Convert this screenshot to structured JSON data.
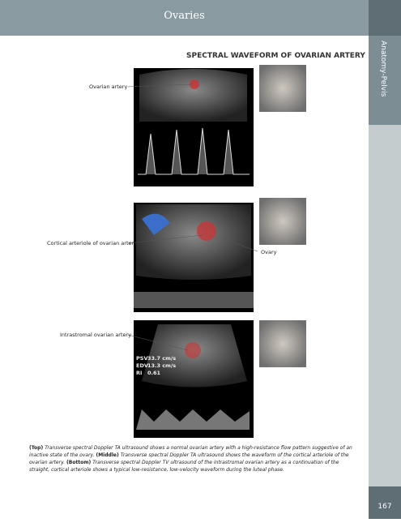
{
  "header": {
    "title": "Ovaries",
    "side_tab": "Anatomy-Pelvis",
    "page_number": "167"
  },
  "section_title": "SPECTRAL WAVEFORM OF OVARIAN ARTERY",
  "figures": [
    {
      "labels": [
        "Ovarian artery"
      ]
    },
    {
      "labels": [
        "Cortical arteriole of ovarian artery",
        "Ovary"
      ]
    },
    {
      "labels": [
        "Intrastromal ovarian artery"
      ],
      "overlay": [
        [
          "PSV",
          "33.7 cm/s"
        ],
        [
          "EDV",
          "13.3 cm/s"
        ],
        [
          "RI",
          "0.61"
        ]
      ]
    }
  ],
  "caption": [
    {
      "label": "(Top)",
      "text": "Transverse spectral Doppler TA ultrasound shows a normal ovarian artery with a high-resistance flow pattern suggestive of an inactive state of the ovary."
    },
    {
      "label": "(Middle)",
      "text": "Transverse spectral Doppler TA ultrasound shows the waveform of the cortical arteriole of the ovarian artery."
    },
    {
      "label": "(Bottom)",
      "text": "Transverse spectral Doppler TV ultrasound of the intrastromal ovarian artery as a continuation of the straight, cortical arteriole shows a typical low-resistance, low-velocity waveform during the luteal phase."
    }
  ]
}
